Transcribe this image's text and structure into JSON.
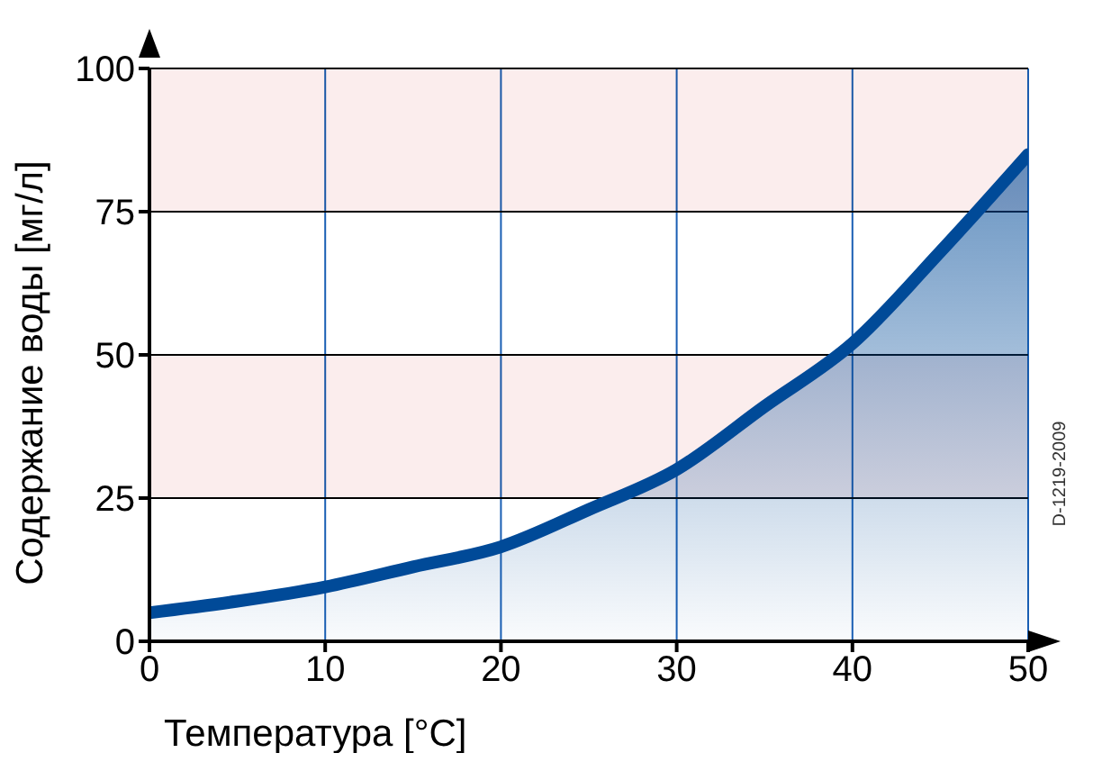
{
  "chart_data": {
    "type": "area",
    "xlabel": "Температура [°C]",
    "ylabel": "Содержание воды [мг/л]",
    "x": [
      0,
      5,
      10,
      15,
      20,
      25,
      30,
      35,
      40,
      45,
      50
    ],
    "series": [
      {
        "color": "#004a98",
        "values": [
          5,
          7,
          9.5,
          13,
          16.5,
          23,
          30,
          41,
          52,
          68,
          85
        ]
      }
    ],
    "xlim": [
      0,
      50
    ],
    "xticks": [
      0,
      10,
      20,
      30,
      40,
      50
    ],
    "ylim": [
      0,
      100
    ],
    "yticks": [
      0,
      25,
      50,
      75,
      100
    ],
    "grid": true,
    "bands": [
      {
        "axis": "y",
        "from": 25,
        "to": 50,
        "color": "#fbeded"
      },
      {
        "axis": "y",
        "from": 75,
        "to": 100,
        "color": "#fbeded"
      }
    ],
    "annotations": [
      "D-1219-2009"
    ]
  }
}
